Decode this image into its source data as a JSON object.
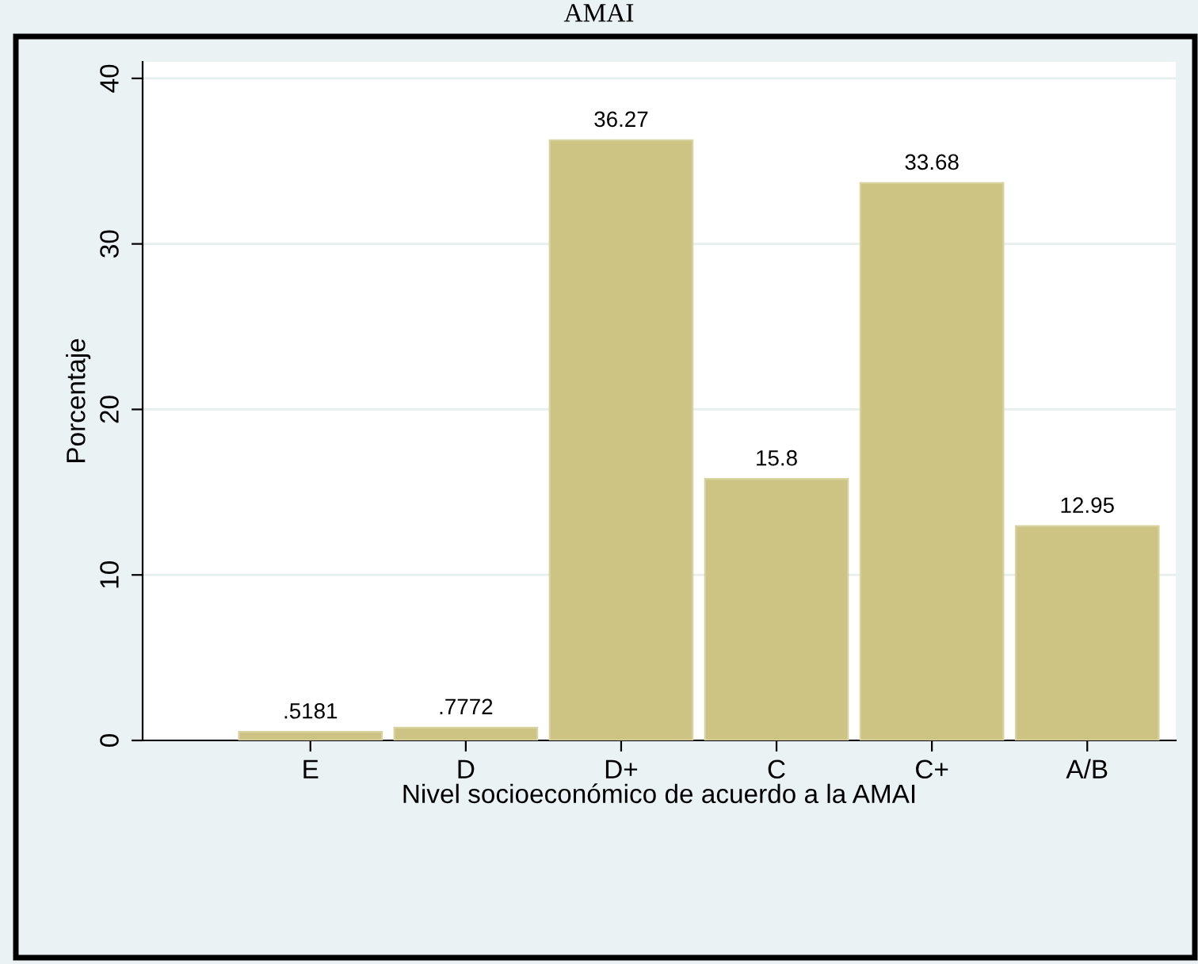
{
  "chart_data": {
    "type": "bar",
    "title": "AMAI",
    "xlabel": "Nivel socioeconómico de acuerdo a la AMAI",
    "ylabel": "Porcentaje",
    "categories": [
      "E",
      "D",
      "D+",
      "C",
      "C+",
      "A/B"
    ],
    "values": [
      0.5181,
      0.7772,
      36.27,
      15.8,
      33.68,
      12.95
    ],
    "value_labels": [
      ".5181",
      ".7772",
      "36.27",
      "15.8",
      "33.68",
      "12.95"
    ],
    "color": "#cdc484",
    "ylim": [
      0,
      41
    ],
    "yticks": [
      0,
      10,
      20,
      30,
      40
    ],
    "grid": "y"
  }
}
